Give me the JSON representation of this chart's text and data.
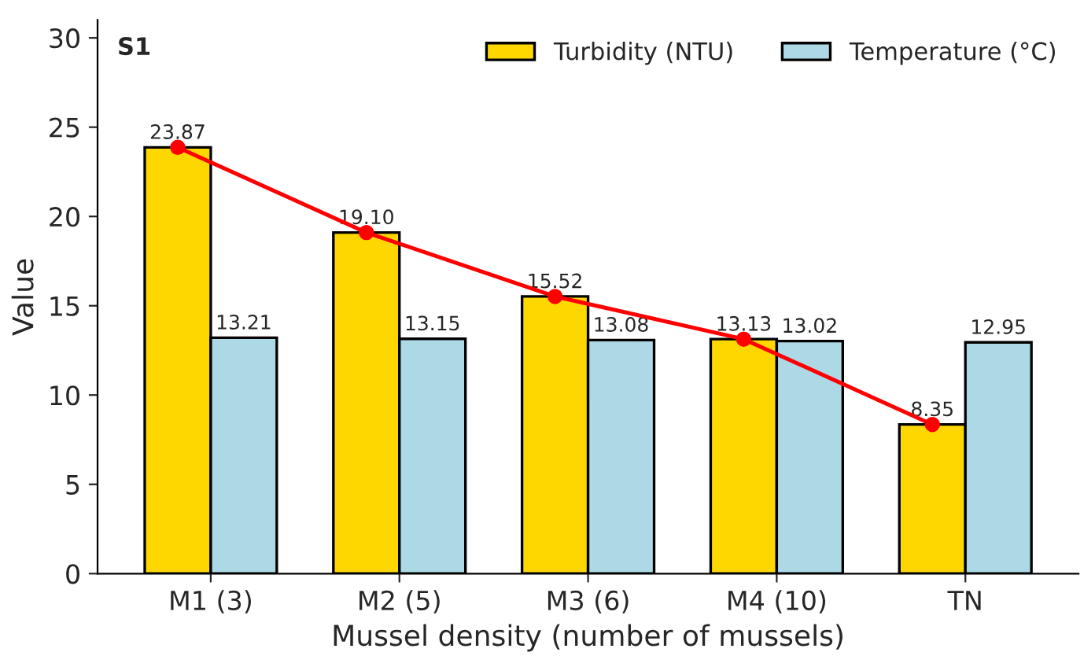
{
  "chart_data": {
    "type": "bar",
    "xlabel": "Mussel density (number of mussels)",
    "ylabel": "Value",
    "categories": [
      "M1 (3)",
      "M2 (5)",
      "M3 (6)",
      "M4 (10)",
      "TN"
    ],
    "series": [
      {
        "name": "Turbidity (NTU)",
        "color": "#ffd700",
        "values": [
          23.87,
          19.1,
          15.52,
          13.13,
          8.35
        ]
      },
      {
        "name": "Temperature (°C)",
        "color": "#add8e6",
        "values": [
          13.21,
          13.15,
          13.08,
          13.02,
          12.95
        ]
      },
      {
        "type": "line",
        "color": "#ff0000",
        "marker": "circle",
        "values": [
          23.87,
          19.1,
          15.52,
          13.13,
          8.35
        ]
      }
    ],
    "value_labels": [
      [
        "23.87",
        "19.10",
        "15.52",
        "13.13",
        "8.35"
      ],
      [
        "13.21",
        "13.15",
        "13.08",
        "13.02",
        "12.95"
      ]
    ],
    "annotations": [
      "S1"
    ],
    "ylim": [
      0,
      31
    ],
    "yticks": [
      0,
      5,
      10,
      15,
      20,
      25,
      30
    ],
    "legend": "top right",
    "grid": false
  }
}
